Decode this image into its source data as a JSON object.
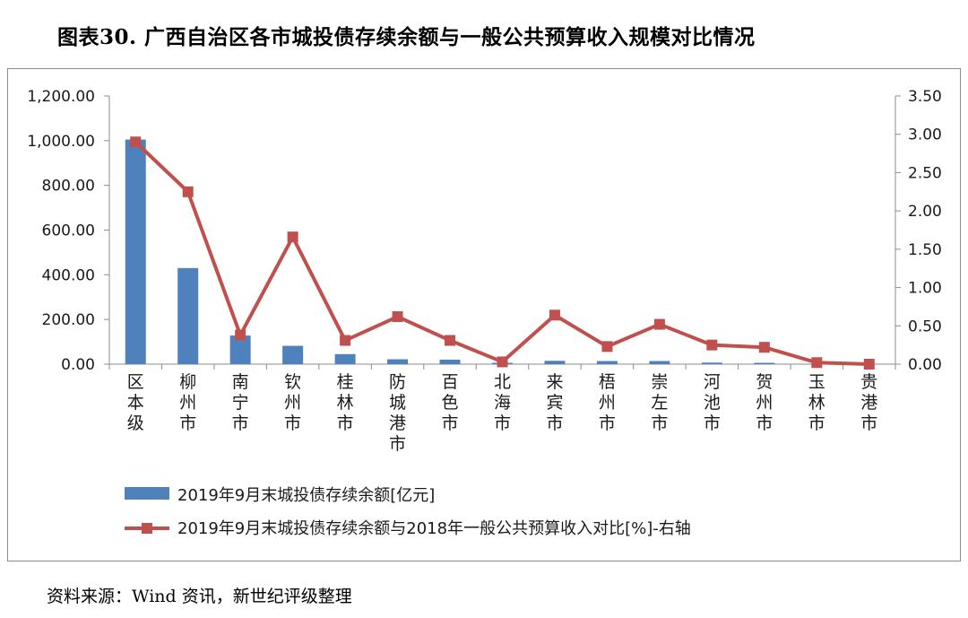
{
  "figure": {
    "title": "图表30.   广西自治区各市城投债存续余额与一般公共预算收入规模对比情况",
    "source": "资料来源：Wind 资讯，新世纪评级整理"
  },
  "chart_data": {
    "type": "bar",
    "categories": [
      "区本级",
      "柳州市",
      "南宁市",
      "钦州市",
      "桂林市",
      "防城港市",
      "百色市",
      "北海市",
      "来宾市",
      "梧州市",
      "崇左市",
      "河池市",
      "贺州市",
      "玉林市",
      "贵港市"
    ],
    "left_axis": {
      "ylim": [
        0,
        1200
      ],
      "ticks": [
        "0.00",
        "200.00",
        "400.00",
        "600.00",
        "800.00",
        "1,000.00",
        "1,200.00"
      ]
    },
    "right_axis": {
      "ylim": [
        0,
        3.5
      ],
      "ticks": [
        "0.00",
        "0.50",
        "1.00",
        "1.50",
        "2.00",
        "2.50",
        "3.00",
        "3.50"
      ]
    },
    "series": [
      {
        "name": "2019年9月末城投债存续余额[亿元]",
        "type": "bar",
        "axis": "left",
        "color": "#4f81bd",
        "values": [
          1005,
          430,
          128,
          82,
          45,
          22,
          20,
          6,
          15,
          14,
          14,
          7,
          6,
          2,
          1
        ]
      },
      {
        "name": "2019年9月末城投债存续余额与2018年一般公共预算收入对比[%]-右轴",
        "type": "line",
        "axis": "right",
        "color": "#c0504d",
        "values": [
          2.9,
          2.25,
          0.38,
          1.66,
          0.31,
          0.62,
          0.31,
          0.03,
          0.64,
          0.23,
          0.52,
          0.25,
          0.22,
          0.02,
          0.0
        ]
      }
    ],
    "legend_position": "bottom",
    "grid": false
  }
}
